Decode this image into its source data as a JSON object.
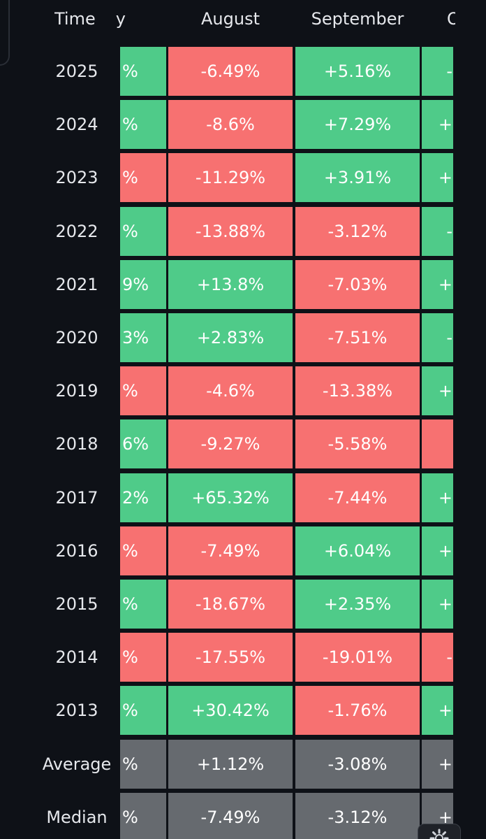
{
  "header": {
    "time_label": "Time",
    "col_left_partial": "y",
    "col_aug": "August",
    "col_sep": "September",
    "col_right_partial": "O"
  },
  "rows": [
    {
      "label": "2025",
      "left": "%",
      "left_color": "green",
      "aug": "-6.49%",
      "aug_color": "red",
      "sep": "+5.16%",
      "sep_color": "green",
      "right": "-",
      "right_color": "green"
    },
    {
      "label": "2024",
      "left": "%",
      "left_color": "green",
      "aug": "-8.6%",
      "aug_color": "red",
      "sep": "+7.29%",
      "sep_color": "green",
      "right": "+",
      "right_color": "green"
    },
    {
      "label": "2023",
      "left": "%",
      "left_color": "red",
      "aug": "-11.29%",
      "aug_color": "red",
      "sep": "+3.91%",
      "sep_color": "green",
      "right": "+",
      "right_color": "green"
    },
    {
      "label": "2022",
      "left": "%",
      "left_color": "green",
      "aug": "-13.88%",
      "aug_color": "red",
      "sep": "-3.12%",
      "sep_color": "red",
      "right": "-",
      "right_color": "green"
    },
    {
      "label": "2021",
      "left": "9%",
      "left_color": "green",
      "aug": "+13.8%",
      "aug_color": "green",
      "sep": "-7.03%",
      "sep_color": "red",
      "right": "+",
      "right_color": "green"
    },
    {
      "label": "2020",
      "left": "3%",
      "left_color": "green",
      "aug": "+2.83%",
      "aug_color": "green",
      "sep": "-7.51%",
      "sep_color": "red",
      "right": "-",
      "right_color": "green"
    },
    {
      "label": "2019",
      "left": "%",
      "left_color": "red",
      "aug": "-4.6%",
      "aug_color": "red",
      "sep": "-13.38%",
      "sep_color": "red",
      "right": "+",
      "right_color": "green"
    },
    {
      "label": "2018",
      "left": "6%",
      "left_color": "green",
      "aug": "-9.27%",
      "aug_color": "red",
      "sep": "-5.58%",
      "sep_color": "red",
      "right": "",
      "right_color": "red"
    },
    {
      "label": "2017",
      "left": "2%",
      "left_color": "green",
      "aug": "+65.32%",
      "aug_color": "green",
      "sep": "-7.44%",
      "sep_color": "red",
      "right": "+",
      "right_color": "green"
    },
    {
      "label": "2016",
      "left": "%",
      "left_color": "red",
      "aug": "-7.49%",
      "aug_color": "red",
      "sep": "+6.04%",
      "sep_color": "green",
      "right": "+",
      "right_color": "green"
    },
    {
      "label": "2015",
      "left": "%",
      "left_color": "green",
      "aug": "-18.67%",
      "aug_color": "red",
      "sep": "+2.35%",
      "sep_color": "green",
      "right": "+",
      "right_color": "green"
    },
    {
      "label": "2014",
      "left": "%",
      "left_color": "red",
      "aug": "-17.55%",
      "aug_color": "red",
      "sep": "-19.01%",
      "sep_color": "red",
      "right": "-",
      "right_color": "red"
    },
    {
      "label": "2013",
      "left": "%",
      "left_color": "green",
      "aug": "+30.42%",
      "aug_color": "green",
      "sep": "-1.76%",
      "sep_color": "red",
      "right": "+",
      "right_color": "green"
    },
    {
      "label": "Average",
      "left": "%",
      "left_color": "gray",
      "aug": "+1.12%",
      "aug_color": "gray",
      "sep": "-3.08%",
      "sep_color": "gray",
      "right": "+",
      "right_color": "gray"
    },
    {
      "label": "Median",
      "left": "%",
      "left_color": "gray",
      "aug": "-7.49%",
      "aug_color": "gray",
      "sep": "-3.12%",
      "sep_color": "gray",
      "right": "+",
      "right_color": "gray"
    }
  ],
  "colors": {
    "green": "#4fcb89",
    "red": "#f77171",
    "gray": "#666a6f",
    "background": "#0e1117"
  },
  "icons": {
    "corner_button": "gear-icon"
  }
}
